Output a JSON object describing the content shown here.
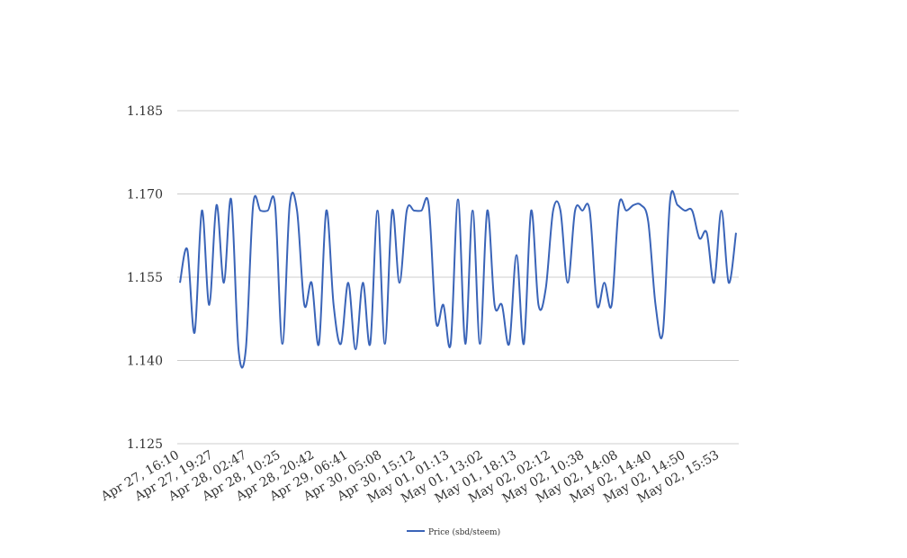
{
  "chart_data": {
    "type": "line",
    "title": "",
    "xlabel": "",
    "ylabel": "",
    "ylim": [
      1.125,
      1.185
    ],
    "yticks": [
      "1.125",
      "1.140",
      "1.155",
      "1.170",
      "1.185"
    ],
    "grid": true,
    "legend_position": "bottom",
    "line_color": "#3a64b8",
    "x_tick_labels": [
      "Apr 27, 16:10",
      "Apr 27, 19:27",
      "Apr 28, 02:47",
      "Apr 28, 10:25",
      "Apr 28, 20:42",
      "Apr 29, 06:41",
      "Apr 30, 05:08",
      "Apr 30, 15:12",
      "May 01, 01:13",
      "May 01, 13:02",
      "May 01, 18:13",
      "May 02, 02:12",
      "May 02, 10:38",
      "May 02, 14:08",
      "May 02, 14:40",
      "May 02, 14:50",
      "May 02, 15:53"
    ],
    "series": [
      {
        "name": "Price (sbd/steem)",
        "values": [
          1.154,
          1.16,
          1.145,
          1.167,
          1.15,
          1.168,
          1.154,
          1.169,
          1.142,
          1.142,
          1.168,
          1.167,
          1.167,
          1.168,
          1.143,
          1.168,
          1.167,
          1.15,
          1.154,
          1.143,
          1.167,
          1.15,
          1.143,
          1.154,
          1.142,
          1.154,
          1.143,
          1.167,
          1.143,
          1.167,
          1.154,
          1.167,
          1.167,
          1.167,
          1.168,
          1.147,
          1.15,
          1.143,
          1.169,
          1.143,
          1.167,
          1.143,
          1.167,
          1.15,
          1.15,
          1.143,
          1.159,
          1.143,
          1.167,
          1.15,
          1.153,
          1.167,
          1.167,
          1.154,
          1.167,
          1.167,
          1.167,
          1.15,
          1.154,
          1.15,
          1.168,
          1.167,
          1.168,
          1.168,
          1.165,
          1.15,
          1.145,
          1.169,
          1.168,
          1.167,
          1.167,
          1.162,
          1.163,
          1.154,
          1.167,
          1.154,
          1.163
        ]
      }
    ]
  }
}
